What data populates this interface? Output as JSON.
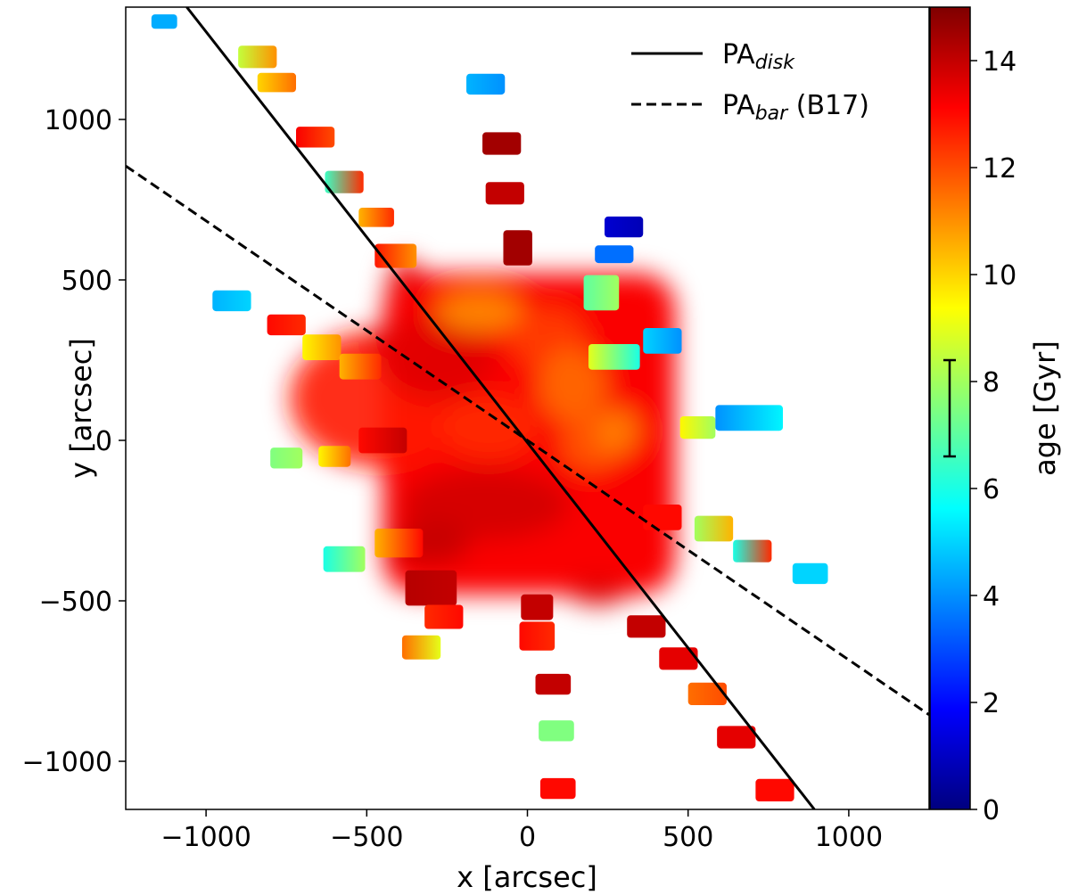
{
  "chart_data": {
    "type": "scatter",
    "title": "",
    "xlabel": "x [arcsec]",
    "ylabel": "y [arcsec]",
    "xlim": [
      -1250,
      1250
    ],
    "ylim": [
      -1150,
      1350
    ],
    "xticks": [
      -1000,
      -500,
      0,
      500,
      1000
    ],
    "yticks": [
      -1000,
      -500,
      0,
      500,
      1000
    ],
    "xtick_labels": [
      "−1000",
      "−500",
      "0",
      "500",
      "1000"
    ],
    "ytick_labels": [
      "−1000",
      "−500",
      "0",
      "500",
      "1000"
    ],
    "grid": false,
    "legend": {
      "placement": "top-right",
      "entries": [
        {
          "name": "PA",
          "subscript": "disk",
          "suffix": "",
          "style": "solid"
        },
        {
          "name": "PA",
          "subscript": "bar",
          "suffix": " (B17)",
          "style": "dashed"
        }
      ]
    },
    "lines": [
      {
        "name": "PA_disk",
        "style": "solid",
        "points": [
          [
            -1060,
            1350
          ],
          [
            893,
            -1150
          ]
        ]
      },
      {
        "name": "PA_bar",
        "style": "dashed",
        "points": [
          [
            -1250,
            855
          ],
          [
            1250,
            -855
          ]
        ]
      }
    ],
    "colorbar": {
      "label": "age [Gyr]",
      "range": [
        0,
        15
      ],
      "ticks": [
        0,
        2,
        4,
        6,
        8,
        10,
        12,
        14
      ],
      "tick_labels": [
        "0",
        "2",
        "4",
        "6",
        "8",
        "10",
        "12",
        "14"
      ],
      "colormap": "jet",
      "error_bar": {
        "low": 6.6,
        "high": 8.4
      },
      "colors": [
        "#00007f",
        "#0000ff",
        "#007fff",
        "#00ffff",
        "#7fff7f",
        "#ffff00",
        "#ff7f00",
        "#ff0000",
        "#7f0000"
      ]
    },
    "central_blob": [
      [
        -460,
        130,
        560,
        430,
        12.8
      ],
      [
        -280,
        260,
        360,
        270,
        13.6
      ],
      [
        -150,
        400,
        270,
        120,
        11.0
      ],
      [
        60,
        320,
        240,
        190,
        12.2
      ],
      [
        140,
        170,
        210,
        230,
        11.5
      ],
      [
        -130,
        -200,
        520,
        220,
        13.8
      ],
      [
        140,
        -350,
        260,
        180,
        13.2
      ],
      [
        -300,
        -320,
        240,
        140,
        14.0
      ],
      [
        -420,
        300,
        160,
        110,
        13.5
      ],
      [
        200,
        -10,
        190,
        170,
        11.8
      ],
      [
        -120,
        40,
        300,
        200,
        12.5
      ],
      [
        -380,
        500,
        110,
        130,
        13.4
      ],
      [
        280,
        30,
        130,
        140,
        11.2
      ],
      [
        220,
        -470,
        180,
        90,
        13.6
      ]
    ],
    "patches": [
      [
        -1130,
        1305,
        80,
        45,
        4.4,
        4.4
      ],
      [
        -840,
        1195,
        120,
        70,
        8.5,
        11.0
      ],
      [
        -780,
        1115,
        120,
        60,
        10.0,
        11.5
      ],
      [
        -660,
        945,
        120,
        65,
        13.2,
        12.0
      ],
      [
        -570,
        805,
        120,
        70,
        6.5,
        12.5
      ],
      [
        -470,
        695,
        110,
        60,
        10.5,
        12.5
      ],
      [
        -410,
        575,
        130,
        75,
        12.8,
        11.0
      ],
      [
        -130,
        1110,
        120,
        65,
        4.5,
        4.0
      ],
      [
        -80,
        925,
        120,
        70,
        14.5,
        14.5
      ],
      [
        -70,
        770,
        120,
        70,
        14.0,
        14.0
      ],
      [
        -30,
        600,
        90,
        110,
        14.5,
        14.5
      ],
      [
        300,
        665,
        120,
        65,
        1.2,
        0.8
      ],
      [
        270,
        580,
        120,
        55,
        3.5,
        3.5
      ],
      [
        230,
        460,
        110,
        110,
        7.0,
        8.0
      ],
      [
        420,
        310,
        120,
        80,
        5.0,
        4.0
      ],
      [
        270,
        260,
        160,
        80,
        9.0,
        6.0
      ],
      [
        -920,
        435,
        120,
        65,
        4.5,
        5.0
      ],
      [
        -750,
        360,
        120,
        65,
        13.0,
        12.5
      ],
      [
        -640,
        290,
        120,
        80,
        9.5,
        11.0
      ],
      [
        -520,
        230,
        130,
        80,
        10.5,
        12.5
      ],
      [
        -450,
        0,
        150,
        80,
        13.0,
        14.0
      ],
      [
        -750,
        -55,
        100,
        65,
        7.5,
        8.0
      ],
      [
        -600,
        -50,
        100,
        65,
        9.5,
        11.5
      ],
      [
        530,
        40,
        110,
        70,
        9.5,
        8.0
      ],
      [
        690,
        70,
        210,
        80,
        4.0,
        5.5
      ],
      [
        420,
        -240,
        120,
        80,
        13.0,
        13.0
      ],
      [
        580,
        -275,
        120,
        80,
        8.0,
        10.5
      ],
      [
        700,
        -345,
        120,
        70,
        6.0,
        12.5
      ],
      [
        880,
        -415,
        110,
        65,
        5.0,
        5.0
      ],
      [
        -570,
        -370,
        130,
        80,
        6.0,
        8.0
      ],
      [
        -400,
        -320,
        150,
        90,
        10.5,
        13.0
      ],
      [
        -300,
        -460,
        160,
        110,
        14.2,
        14.0
      ],
      [
        -260,
        -550,
        120,
        75,
        12.5,
        13.0
      ],
      [
        -330,
        -645,
        120,
        75,
        11.5,
        9.0
      ],
      [
        30,
        -610,
        110,
        90,
        13.0,
        12.5
      ],
      [
        30,
        -520,
        100,
        80,
        14.0,
        14.0
      ],
      [
        80,
        -760,
        110,
        65,
        14.0,
        14.0
      ],
      [
        90,
        -905,
        110,
        65,
        7.5,
        7.5
      ],
      [
        95,
        -1085,
        110,
        65,
        13.0,
        13.0
      ],
      [
        370,
        -580,
        120,
        70,
        14.0,
        14.0
      ],
      [
        470,
        -680,
        120,
        70,
        13.5,
        13.5
      ],
      [
        560,
        -790,
        120,
        70,
        11.5,
        12.0
      ],
      [
        650,
        -925,
        120,
        70,
        13.5,
        13.5
      ],
      [
        770,
        -1090,
        120,
        70,
        13.0,
        13.0
      ]
    ]
  }
}
